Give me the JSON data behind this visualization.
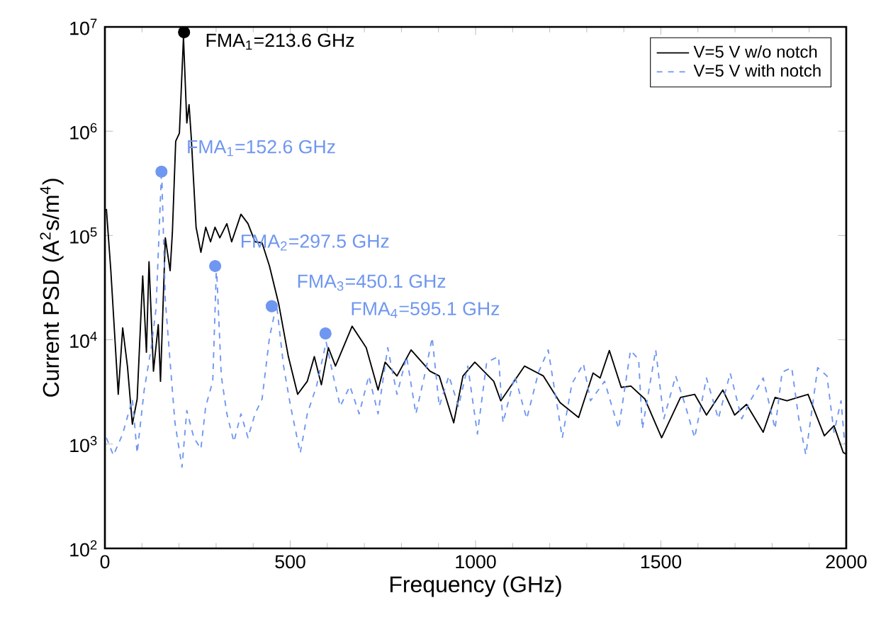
{
  "chart_data": {
    "type": "line",
    "xlabel": "Frequency (GHz)",
    "ylabel": "Current PSD (A$^{2}$s/m$^{4}$)",
    "log": "y",
    "xlim": [
      0,
      2000
    ],
    "ylim": [
      100,
      10000000
    ],
    "xticks": [
      0,
      500,
      1000,
      1500,
      2000
    ],
    "yticks": [
      {
        "value": 100,
        "label": "10$^{2}$"
      },
      {
        "value": 1000,
        "label": "10$^{3}$"
      },
      {
        "value": 10000,
        "label": "10$^{4}$"
      },
      {
        "value": 100000,
        "label": "10$^{5}$"
      },
      {
        "value": 1000000,
        "label": "10$^{6}$"
      },
      {
        "value": 10000000,
        "label": "10$^{7}$"
      }
    ],
    "grid": false,
    "legend": "top right",
    "series": [
      {
        "name": "V=5 V w/o notch",
        "color": "#000000",
        "line_style": "solid",
        "x": [
          4,
          16,
          36,
          48,
          61,
          74,
          87,
          102,
          112,
          119,
          131,
          144,
          150,
          163,
          176,
          182,
          191,
          201,
          212,
          221,
          227,
          233,
          246,
          259,
          272,
          285,
          297,
          310,
          329,
          342,
          367,
          386,
          405,
          424,
          444,
          469,
          495,
          520,
          546,
          565,
          584,
          603,
          622,
          667,
          705,
          737,
          756,
          788,
          826,
          877,
          902,
          941,
          966,
          998,
          1049,
          1068,
          1132,
          1183,
          1228,
          1278,
          1317,
          1336,
          1361,
          1393,
          1419,
          1457,
          1502,
          1553,
          1591,
          1623,
          1667,
          1699,
          1731,
          1776,
          1808,
          1840,
          1897,
          1941,
          1967,
          1992,
          2000
        ],
        "values": [
          180000,
          46000,
          3000,
          13000,
          5500,
          1550,
          2700,
          41000,
          7600,
          56000,
          5000,
          14000,
          4000,
          95000,
          46000,
          106000,
          800000,
          960000,
          8000000,
          1200000,
          1800000,
          870000,
          120000,
          69000,
          120000,
          87000,
          120000,
          95000,
          130000,
          87000,
          160000,
          130000,
          87000,
          85000,
          51000,
          22000,
          6900,
          3000,
          4000,
          6900,
          3700,
          8400,
          5600,
          13500,
          8400,
          3300,
          6100,
          4500,
          8000,
          5000,
          4500,
          1600,
          4500,
          6100,
          4000,
          2600,
          5600,
          4500,
          2500,
          1800,
          4800,
          4300,
          7900,
          3500,
          3600,
          2700,
          1150,
          2800,
          3000,
          1900,
          3300,
          1900,
          2400,
          1300,
          2800,
          2600,
          3000,
          1200,
          1500,
          830,
          800
        ]
      },
      {
        "name": "V=5 V with notch",
        "color": "#6f96f0",
        "line_style": "dashed",
        "x": [
          4,
          23,
          48,
          74,
          87,
          106,
          125,
          138,
          153,
          163,
          176,
          189,
          208,
          221,
          240,
          259,
          272,
          291,
          301,
          314,
          329,
          348,
          367,
          386,
          405,
          424,
          444,
          463,
          482,
          501,
          527,
          546,
          571,
          597,
          616,
          635,
          661,
          686,
          712,
          737,
          763,
          788,
          814,
          839,
          865,
          883,
          902,
          928,
          954,
          979,
          1005,
          1030,
          1062,
          1074,
          1106,
          1138,
          1170,
          1196,
          1234,
          1260,
          1291,
          1310,
          1348,
          1386,
          1418,
          1440,
          1450,
          1486,
          1508,
          1540,
          1565,
          1591,
          1623,
          1655,
          1687,
          1718,
          1744,
          1776,
          1808,
          1827,
          1853,
          1872,
          1891,
          1923,
          1948,
          1967,
          1986,
          1996
        ],
        "values": [
          1150,
          780,
          1250,
          2700,
          820,
          3300,
          8400,
          20000,
          430000,
          24000,
          6100,
          1600,
          600,
          2100,
          1150,
          900,
          2300,
          4000,
          51000,
          4500,
          1950,
          1050,
          1950,
          1150,
          1950,
          2700,
          10500,
          22000,
          5600,
          2300,
          820,
          1950,
          3600,
          9500,
          4500,
          2300,
          3600,
          1950,
          4500,
          1950,
          8400,
          3000,
          6900,
          1950,
          5000,
          10500,
          2300,
          4500,
          2300,
          5600,
          1250,
          6100,
          6900,
          1600,
          4500,
          1750,
          4900,
          8000,
          1150,
          3800,
          5900,
          2600,
          4000,
          1400,
          7900,
          6500,
          1400,
          8000,
          1750,
          4500,
          2400,
          1150,
          4300,
          1750,
          4800,
          1750,
          2700,
          4300,
          1400,
          4900,
          5400,
          1750,
          790,
          5400,
          4500,
          1300,
          2600,
          1000
        ]
      },
      {
        "type": "scatter",
        "color": "#000000",
        "marker": "circle",
        "x": [
          213.6
        ],
        "values": [
          8900000
        ]
      },
      {
        "type": "scatter",
        "color": "#6f96f0",
        "marker": "circle",
        "x": [
          152.6,
          297.5,
          450.1,
          595.1
        ],
        "values": [
          410000,
          51000,
          21000,
          11500
        ]
      }
    ],
    "annotations": [
      {
        "text": "FMA$_{1}$=213.6 GHz",
        "x": 213.6,
        "y": 8900000
      },
      {
        "text": "FMA$_{1}$=152.6 GHz",
        "x": 152.6,
        "y": 410000
      },
      {
        "text": "FMA$_{2}$=297.5 GHz",
        "x": 297.5,
        "y": 51000
      },
      {
        "text": "FMA$_{3}$=450.1 GHz",
        "x": 450.1,
        "y": 21000
      },
      {
        "text": "FMA$_{4}$=595.1 GHz",
        "x": 595.1,
        "y": 11500
      }
    ]
  }
}
